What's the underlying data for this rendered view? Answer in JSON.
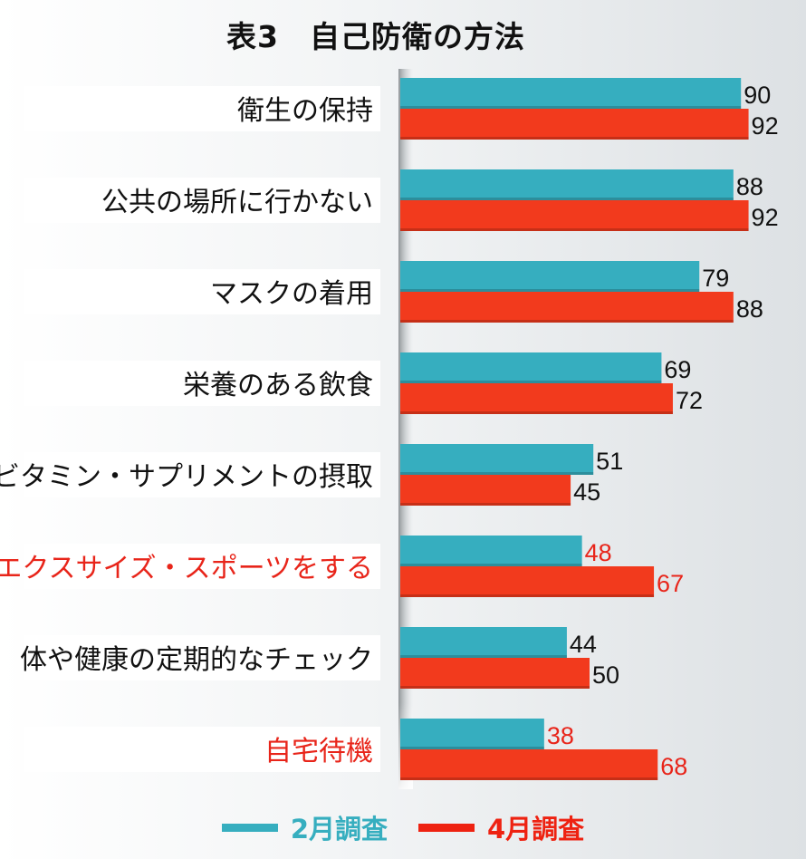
{
  "title": "表3　自己防衛の方法",
  "colors": {
    "feb": "#36aebf",
    "apr": "#f23a1d",
    "label_black": "#111111",
    "label_red": "#e8251a"
  },
  "legend": [
    {
      "label": "2月調査",
      "color": "#36aebf",
      "text_color": "#36aebf"
    },
    {
      "label": "4月調査",
      "color": "#ee2211",
      "text_color": "#ee2211"
    }
  ],
  "chart_data": {
    "type": "bar",
    "orientation": "horizontal",
    "title": "表3　自己防衛の方法",
    "categories": [
      "衛生の保持",
      "公共の場所に行かない",
      "マスクの着用",
      "栄養のある飲食",
      "ビタミン・サプリメントの摂取",
      "エクスサイズ・スポーツをする",
      "体や健康の定期的なチェック",
      "自宅待機"
    ],
    "highlighted_categories": [
      "エクスサイズ・スポーツをする",
      "自宅待機"
    ],
    "series": [
      {
        "name": "2月調査",
        "values": [
          90,
          88,
          79,
          69,
          51,
          48,
          44,
          38
        ]
      },
      {
        "name": "4月調査",
        "values": [
          92,
          92,
          88,
          72,
          45,
          67,
          50,
          68
        ]
      }
    ],
    "xlim": [
      0,
      100
    ],
    "grid": false,
    "legend_position": "bottom"
  }
}
